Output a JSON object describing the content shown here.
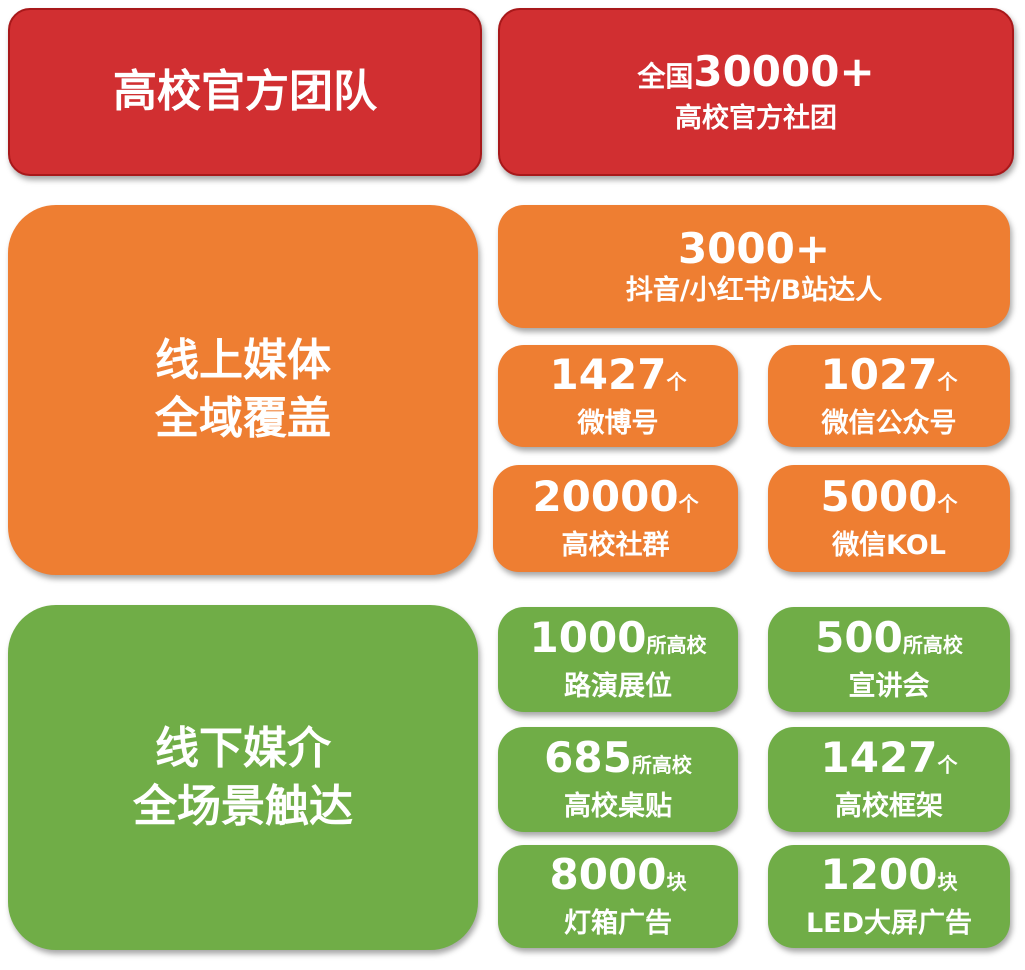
{
  "sections": [
    {
      "color": "#d12f31",
      "title": [
        "高校官方团队"
      ],
      "items": [
        {
          "prefix": "全国",
          "number": "30000+",
          "label": "高校官方社团"
        }
      ]
    },
    {
      "color": "#ee7e32",
      "title": [
        "线上媒体",
        "全域覆盖"
      ],
      "items": [
        {
          "number": "3000+",
          "label": "抖音/小红书/B站达人"
        },
        {
          "number": "1427",
          "unit": "个",
          "label": "微博号"
        },
        {
          "number": "1027",
          "unit": "个",
          "label": "微信公众号"
        },
        {
          "number": "20000",
          "unit": "个",
          "label": "高校社群"
        },
        {
          "number": "5000",
          "unit": "个",
          "label": "微信KOL"
        }
      ]
    },
    {
      "color": "#70ad47",
      "title": [
        "线下媒介",
        "全场景触达"
      ],
      "items": [
        {
          "number": "1000",
          "unit": "所高校",
          "label": "路演展位"
        },
        {
          "number": "500",
          "unit": "所高校",
          "label": "宣讲会"
        },
        {
          "number": "685",
          "unit": "所高校",
          "label": "高校桌贴"
        },
        {
          "number": "1427",
          "unit": "个",
          "label": "高校框架"
        },
        {
          "number": "8000",
          "unit": "块",
          "label": "灯箱广告"
        },
        {
          "number": "1200",
          "unit": "块",
          "label": "LED大屏广告"
        }
      ]
    }
  ]
}
